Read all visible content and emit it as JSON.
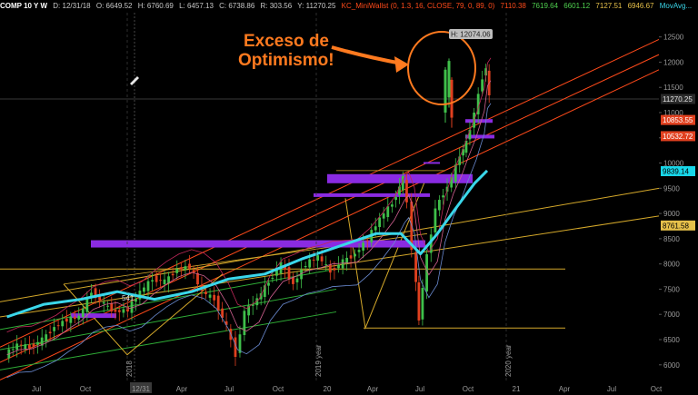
{
  "header": {
    "symbol": "COMP 10 Y W",
    "date": "D: 12/31/18",
    "open": "O: 6649.52",
    "high": "H: 6760.69",
    "low": "L: 6457.13",
    "close": "C: 6738.86",
    "change": "R: 303.56",
    "last": "Y: 11270.25",
    "indicator": "KC_MiniWallst (0, 1.3, 16, CLOSE, 79, 0, 89, 0)",
    "ind_v1": "7110.38",
    "ind_v2": "7619.64",
    "ind_v3": "6601.12",
    "ind_v4": "7127.51",
    "ind_v5": "6946.67",
    "mov_avg": "MovAvg..."
  },
  "annotation": {
    "line1": "Exceso de",
    "line2": "Optimismo!"
  },
  "high_label": "H: 12074.06",
  "low_marker": "541",
  "price_tags": [
    {
      "value": "11270.25",
      "bg": "#2a2a2a",
      "fg": "#e6e6e6",
      "price": 11270
    },
    {
      "value": "10853.55",
      "bg": "#e0401f",
      "fg": "#ffffff",
      "price": 10854
    },
    {
      "value": "10532.72",
      "bg": "#e0401f",
      "fg": "#ffffff",
      "price": 10533
    },
    {
      "value": "9839.14",
      "bg": "#18d6e8",
      "fg": "#000000",
      "price": 9839
    },
    {
      "value": "8761.58",
      "bg": "#e6c04a",
      "fg": "#000000",
      "price": 8762
    }
  ],
  "vertical_labels": [
    {
      "text": "2018",
      "date": "2018-01-01"
    },
    {
      "text": "2019 year",
      "date": "2019-01-01"
    },
    {
      "text": "2020 year",
      "date": "2020-01-01"
    }
  ],
  "colors": {
    "background": "#000000",
    "bull": "#3fbf4a",
    "bear": "#e0401f",
    "ma_fast": "#3ad7ea",
    "channel": "#ff4a1a",
    "zone": "#8a2be2",
    "fib": "#d4a82a",
    "trend_green": "#2fae37",
    "grid": "#1c1c1c"
  },
  "chart_data": {
    "type": "line",
    "title": "",
    "x_axis_labels": [
      "Jul",
      "Oct",
      "12/31",
      "Apr",
      "Jul",
      "Oct",
      "20",
      "Apr",
      "Jul",
      "Oct",
      "21",
      "Apr",
      "Jul",
      "Oct"
    ],
    "y_axis_labels": [
      "12500",
      "12000",
      "11500",
      "11000",
      "10500",
      "10000",
      "9500",
      "9000",
      "8500",
      "8000",
      "7500",
      "7000",
      "6500",
      "6000"
    ],
    "ylim": [
      5600,
      12800
    ],
    "grid": false,
    "series": [
      {
        "key": "price",
        "x": [
          "2017-06-01",
          "2017-07-01",
          "2017-08-01",
          "2017-09-01",
          "2017-10-01",
          "2017-11-01",
          "2017-12-01",
          "2018-01-01",
          "2018-02-01",
          "2018-03-01",
          "2018-04-01",
          "2018-05-01",
          "2018-06-01",
          "2018-07-01",
          "2018-08-01",
          "2018-09-01",
          "2018-10-01",
          "2018-11-01",
          "2018-12-01",
          "2018-12-24",
          "2019-01-15",
          "2019-02-15",
          "2019-03-15",
          "2019-04-15",
          "2019-05-15",
          "2019-06-15",
          "2019-07-15",
          "2019-08-15",
          "2019-09-15",
          "2019-10-15",
          "2019-11-15",
          "2019-12-15",
          "2020-01-15",
          "2020-02-10",
          "2020-02-20",
          "2020-03-05",
          "2020-03-20",
          "2020-04-10",
          "2020-05-01",
          "2020-05-20",
          "2020-06-10",
          "2020-06-30",
          "2020-07-15",
          "2020-08-05",
          "2020-08-25",
          "2020-09-02",
          "2020-09-10"
        ],
        "y": [
          6200,
          6400,
          6350,
          6500,
          6750,
          6900,
          6950,
          7450,
          7200,
          7050,
          7100,
          7450,
          7700,
          7650,
          7900,
          7950,
          7450,
          7300,
          6750,
          6200,
          7050,
          7300,
          7650,
          8000,
          7600,
          8000,
          8150,
          7850,
          8050,
          8200,
          8500,
          8900,
          9200,
          9700,
          9200,
          8300,
          6900,
          8150,
          9100,
          9400,
          9700,
          10150,
          10400,
          11000,
          11700,
          11900,
          11300
        ]
      },
      {
        "key": "ma_fast",
        "x": [
          "2017-06-01",
          "2017-09-01",
          "2017-12-01",
          "2018-03-01",
          "2018-06-01",
          "2018-09-01",
          "2018-12-01",
          "2019-03-01",
          "2019-06-01",
          "2019-09-01",
          "2019-12-01",
          "2020-02-01",
          "2020-03-20",
          "2020-05-01",
          "2020-06-15",
          "2020-08-01",
          "2020-09-01"
        ],
        "y": [
          6950,
          7200,
          7300,
          7450,
          7300,
          7450,
          7700,
          7800,
          8100,
          8350,
          8600,
          8600,
          8200,
          8600,
          9100,
          9600,
          9850
        ]
      }
    ]
  }
}
